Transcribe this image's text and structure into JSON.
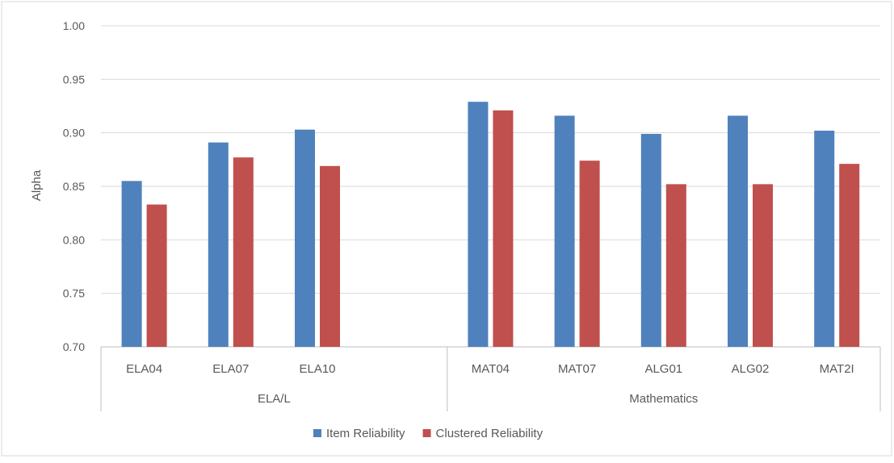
{
  "chart_data": {
    "type": "bar",
    "ylabel": "Alpha",
    "ylim": [
      0.7,
      1.0
    ],
    "yticks": [
      "0.70",
      "0.75",
      "0.80",
      "0.85",
      "0.90",
      "0.95",
      "1.00"
    ],
    "grid": true,
    "legend_position": "bottom",
    "groups": [
      {
        "label": "ELA/L",
        "categories": [
          "ELA04",
          "ELA07",
          "ELA10"
        ]
      },
      {
        "label": "Mathematics",
        "categories": [
          "MAT04",
          "MAT07",
          "ALG01",
          "ALG02",
          "MAT2I"
        ]
      }
    ],
    "categories": [
      "ELA04",
      "ELA07",
      "ELA10",
      "MAT04",
      "MAT07",
      "ALG01",
      "ALG02",
      "MAT2I"
    ],
    "series": [
      {
        "name": "Item Reliability",
        "color": "#4f81bd",
        "values": [
          0.855,
          0.891,
          0.903,
          0.929,
          0.916,
          0.899,
          0.916,
          0.902
        ]
      },
      {
        "name": "Clustered Reliability",
        "color": "#c0504d",
        "values": [
          0.833,
          0.877,
          0.869,
          0.921,
          0.874,
          0.852,
          0.852,
          0.871
        ]
      }
    ]
  }
}
